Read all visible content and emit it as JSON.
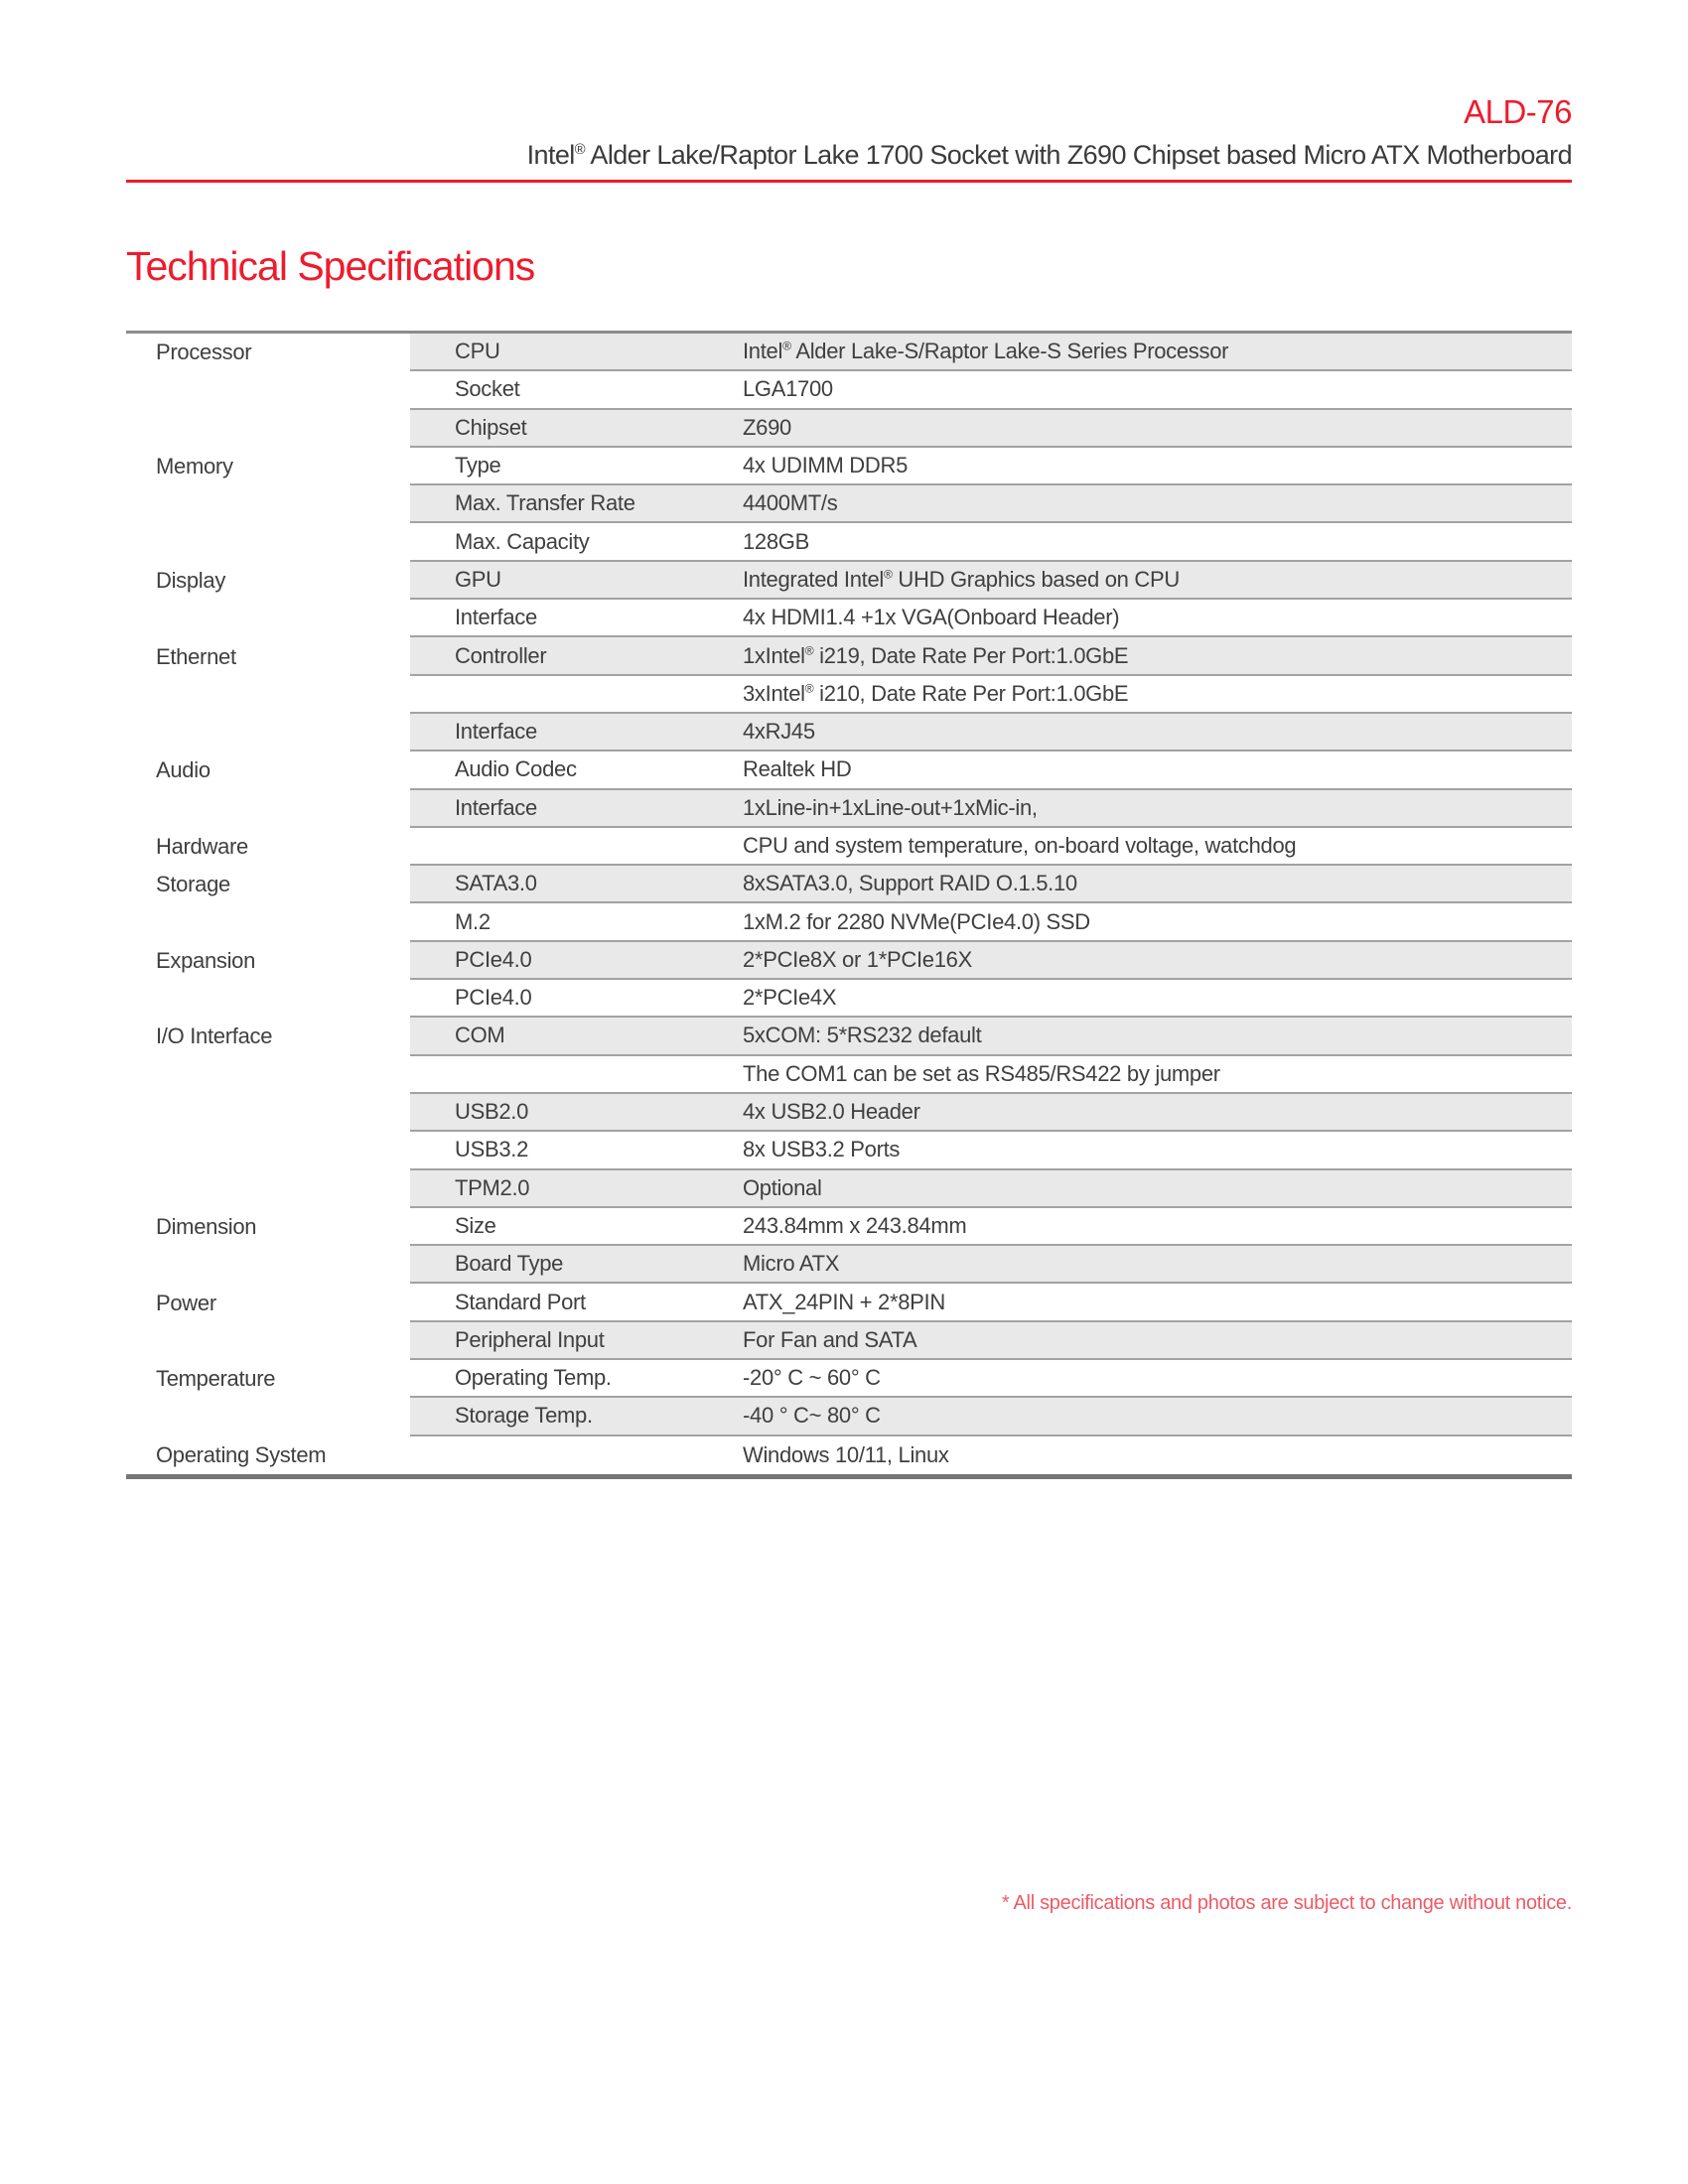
{
  "page": {
    "product_code": "ALD-76",
    "subtitle": "Intel® Alder Lake/Raptor Lake 1700 Socket with Z690 Chipset based Micro ATX Motherboard",
    "section_title": "Technical Specifications",
    "footnote": "* All specifications and photos are subject to change without notice."
  },
  "colors": {
    "accent_red": "#ed1c2d",
    "footnote_red": "#ef5964",
    "row_shade": "#e9e9e9",
    "text": "#3f3f3f"
  },
  "spec_table": {
    "rows": [
      {
        "category": "Processor",
        "item": "CPU",
        "value": "Intel® Alder Lake-S/Raptor Lake-S Series Processor",
        "shaded": true
      },
      {
        "category": "",
        "item": "Socket",
        "value": "LGA1700",
        "shaded": false
      },
      {
        "category": "",
        "item": "Chipset",
        "value": "Z690",
        "shaded": true
      },
      {
        "category": "Memory",
        "item": "Type",
        "value": "4x UDIMM DDR5",
        "shaded": false
      },
      {
        "category": "",
        "item": "Max. Transfer Rate",
        "value": "4400MT/s",
        "shaded": true
      },
      {
        "category": "",
        "item": "Max. Capacity",
        "value": "128GB",
        "shaded": false
      },
      {
        "category": "Display",
        "item": "GPU",
        "value": "Integrated Intel® UHD Graphics based on CPU",
        "shaded": true
      },
      {
        "category": "",
        "item": "Interface",
        "value": "4x HDMI1.4 +1x VGA(Onboard Header)",
        "shaded": false
      },
      {
        "category": "Ethernet",
        "item": "Controller",
        "value": "1xIntel® i219, Date Rate Per Port:1.0GbE",
        "shaded": true
      },
      {
        "category": "",
        "item": "",
        "value": "3xIntel® i210, Date Rate Per Port:1.0GbE",
        "shaded": false
      },
      {
        "category": "",
        "item": "Interface",
        "value": "4xRJ45",
        "shaded": true
      },
      {
        "category": "Audio",
        "item": "Audio Codec",
        "value": "Realtek HD",
        "shaded": false
      },
      {
        "category": "",
        "item": "Interface",
        "value": "1xLine-in+1xLine-out+1xMic-in,",
        "shaded": true
      },
      {
        "category": "Hardware",
        "item": "",
        "value": "CPU and system temperature, on-board voltage, watchdog",
        "shaded": false
      },
      {
        "category": "Storage",
        "item": "SATA3.0",
        "value": "8xSATA3.0, Support RAID O.1.5.10",
        "shaded": true
      },
      {
        "category": "",
        "item": "M.2",
        "value": "1xM.2 for 2280 NVMe(PCIe4.0) SSD",
        "shaded": false
      },
      {
        "category": "Expansion",
        "item": "PCIe4.0",
        "value": "2*PCIe8X or 1*PCIe16X",
        "shaded": true
      },
      {
        "category": "",
        "item": "PCIe4.0",
        "value": "2*PCIe4X",
        "shaded": false
      },
      {
        "category": "I/O Interface",
        "item": "COM",
        "value": "5xCOM: 5*RS232 default",
        "shaded": true
      },
      {
        "category": "",
        "item": "",
        "value": "The COM1 can be set as RS485/RS422 by jumper",
        "shaded": false
      },
      {
        "category": "",
        "item": "USB2.0",
        "value": "4x USB2.0 Header",
        "shaded": true
      },
      {
        "category": "",
        "item": "USB3.2",
        "value": "8x USB3.2 Ports",
        "shaded": false
      },
      {
        "category": "",
        "item": "TPM2.0",
        "value": "Optional",
        "shaded": true
      },
      {
        "category": "Dimension",
        "item": "Size",
        "value": "243.84mm x 243.84mm",
        "shaded": false
      },
      {
        "category": "",
        "item": "Board Type",
        "value": "Micro ATX",
        "shaded": true
      },
      {
        "category": "Power",
        "item": "Standard Port",
        "value": "ATX_24PIN + 2*8PIN",
        "shaded": false
      },
      {
        "category": "",
        "item": "Peripheral Input",
        "value": "For Fan and SATA",
        "shaded": true
      },
      {
        "category": "Temperature",
        "item": "Operating Temp.",
        "value": "-20° C ~ 60° C",
        "shaded": false
      },
      {
        "category": "",
        "item": "Storage Temp.",
        "value": "-40 ° C~ 80° C",
        "shaded": true
      },
      {
        "category": "Operating System",
        "item": "",
        "value": "Windows 10/11, Linux",
        "shaded": false
      }
    ]
  }
}
